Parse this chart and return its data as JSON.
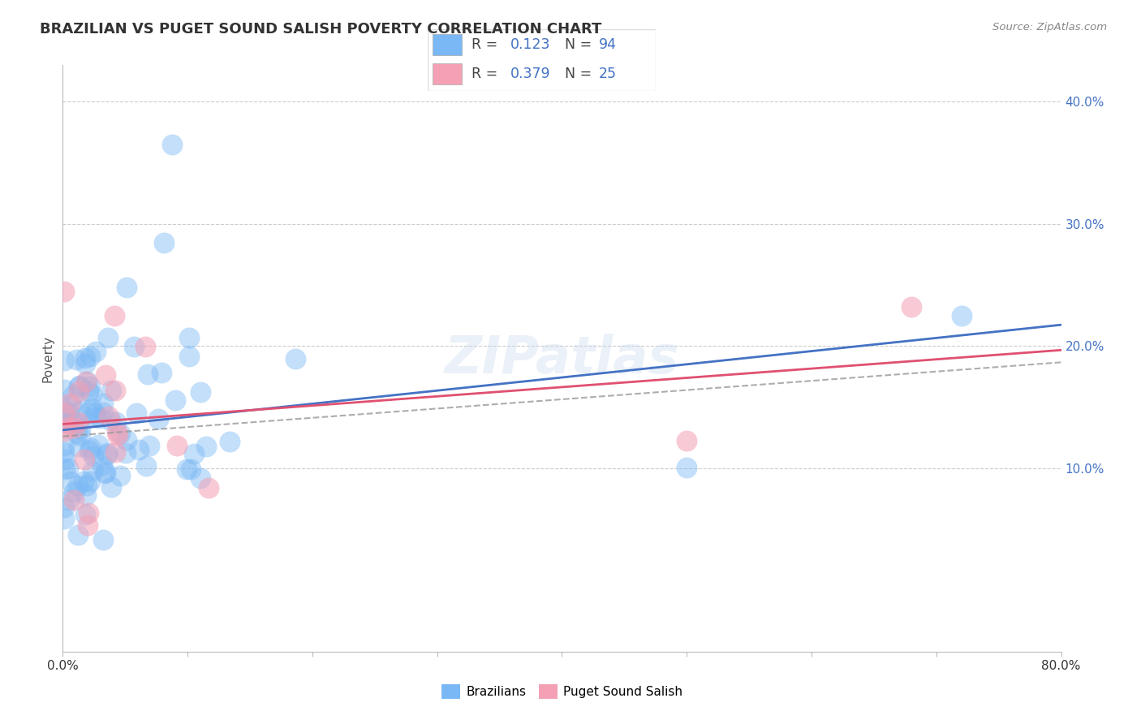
{
  "title": "BRAZILIAN VS PUGET SOUND SALISH POVERTY CORRELATION CHART",
  "source_text": "Source: ZipAtlas.com",
  "ylabel": "Poverty",
  "xlim": [
    0.0,
    0.8
  ],
  "ylim": [
    -0.05,
    0.43
  ],
  "yticks_right": [
    0.1,
    0.2,
    0.3,
    0.4
  ],
  "ytick_labels_right": [
    "10.0%",
    "20.0%",
    "30.0%",
    "40.0%"
  ],
  "grid_color": "#cccccc",
  "background_color": "#ffffff",
  "blue_color": "#7ab8f5",
  "blue_line_color": "#4472c4",
  "pink_color": "#f4a0b5",
  "pink_line_color": "#e05070",
  "dashed_line_color": "#888888",
  "title_fontsize": 13,
  "axis_label_fontsize": 11,
  "tick_fontsize": 11,
  "r_color": "#4472c4",
  "series": [
    {
      "name": "Brazilians",
      "R": 0.123,
      "N": 94
    },
    {
      "name": "Puget Sound Salish",
      "R": 0.379,
      "N": 25
    }
  ]
}
